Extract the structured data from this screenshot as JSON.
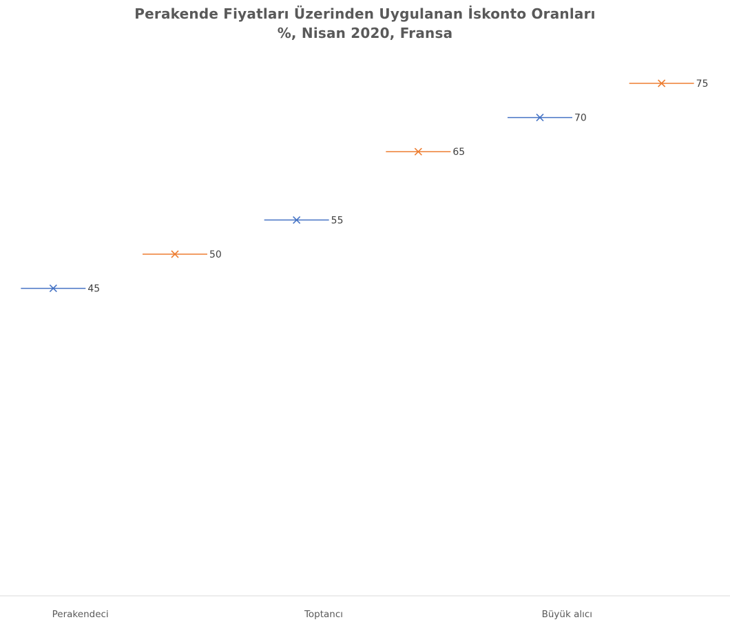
{
  "chart_data": {
    "type": "scatter",
    "title": "Perakende Fiyatları Üzerinden Uygulanan İskonto Oranları",
    "subtitle": "%, Nisan 2020, Fransa",
    "categories": [
      "Perakendeci",
      "Toptancı",
      "Büyük alıcı"
    ],
    "ylim": [
      0,
      100
    ],
    "grid": false,
    "legend": "none",
    "series": [
      {
        "values": [
          45,
          55,
          70
        ],
        "color": "#4472C4"
      },
      {
        "values": [
          50,
          65,
          75
        ],
        "color": "#ED7D31"
      }
    ]
  }
}
